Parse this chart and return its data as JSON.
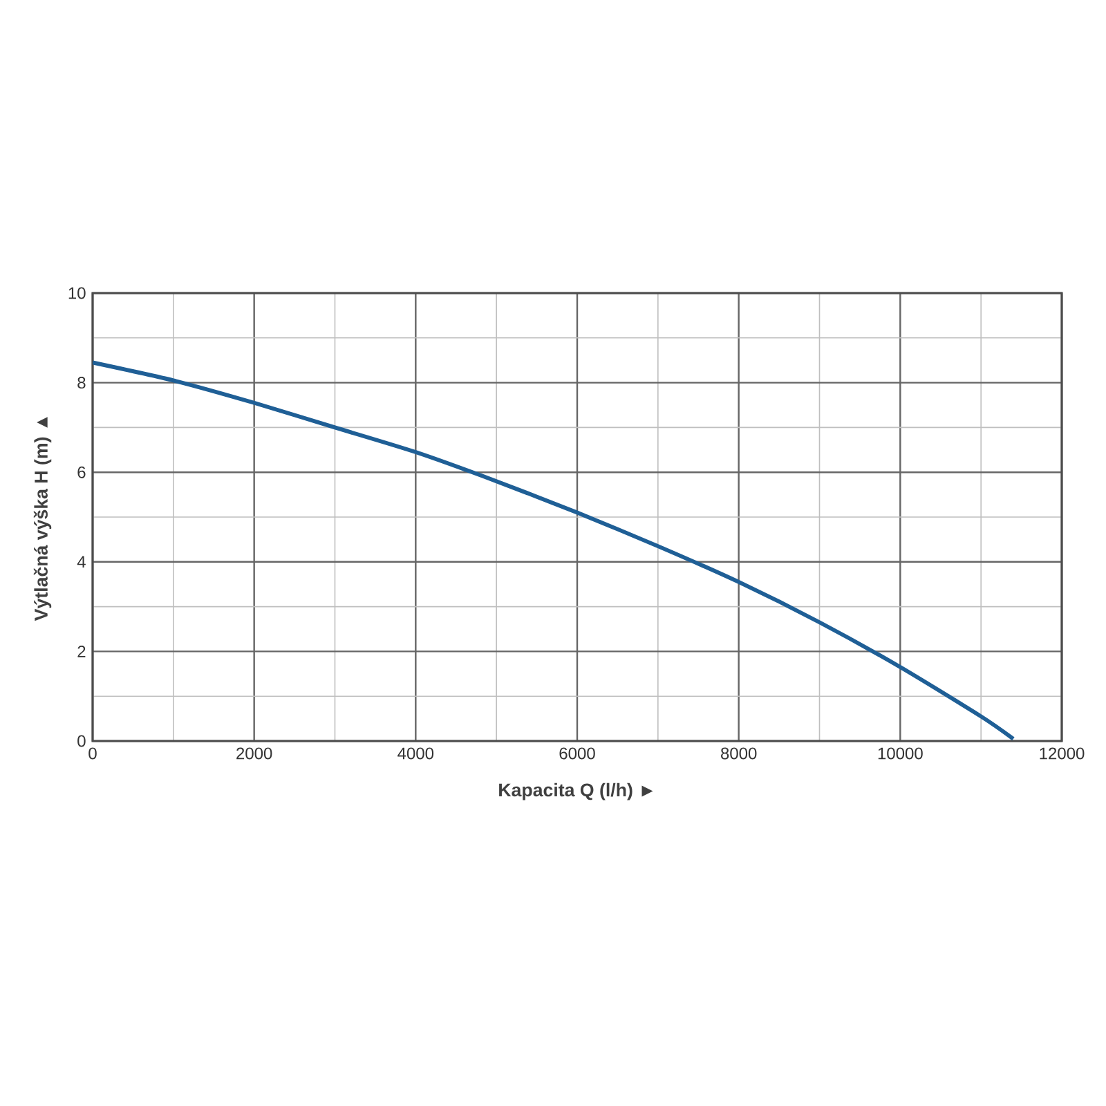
{
  "chart_data": {
    "type": "line",
    "xlabel": "Kapacita Q (l/h)  ►",
    "ylabel": "Výtlačná výška H (m)  ▲",
    "xlim": [
      0,
      12000
    ],
    "xticks": [
      0,
      2000,
      4000,
      6000,
      8000,
      10000,
      12000
    ],
    "ylim": [
      0,
      10
    ],
    "yticks": [
      0,
      2,
      4,
      6,
      8,
      10
    ],
    "grid": true,
    "series": [
      {
        "color": "#1f5f96",
        "x": [
          0,
          1000,
          2000,
          3000,
          4000,
          5000,
          6000,
          7000,
          8000,
          9000,
          10000,
          11000,
          11400
        ],
        "values": [
          8.45,
          8.05,
          7.55,
          7.0,
          6.45,
          5.8,
          5.1,
          4.35,
          3.55,
          2.65,
          1.65,
          0.55,
          0.05
        ]
      }
    ]
  }
}
